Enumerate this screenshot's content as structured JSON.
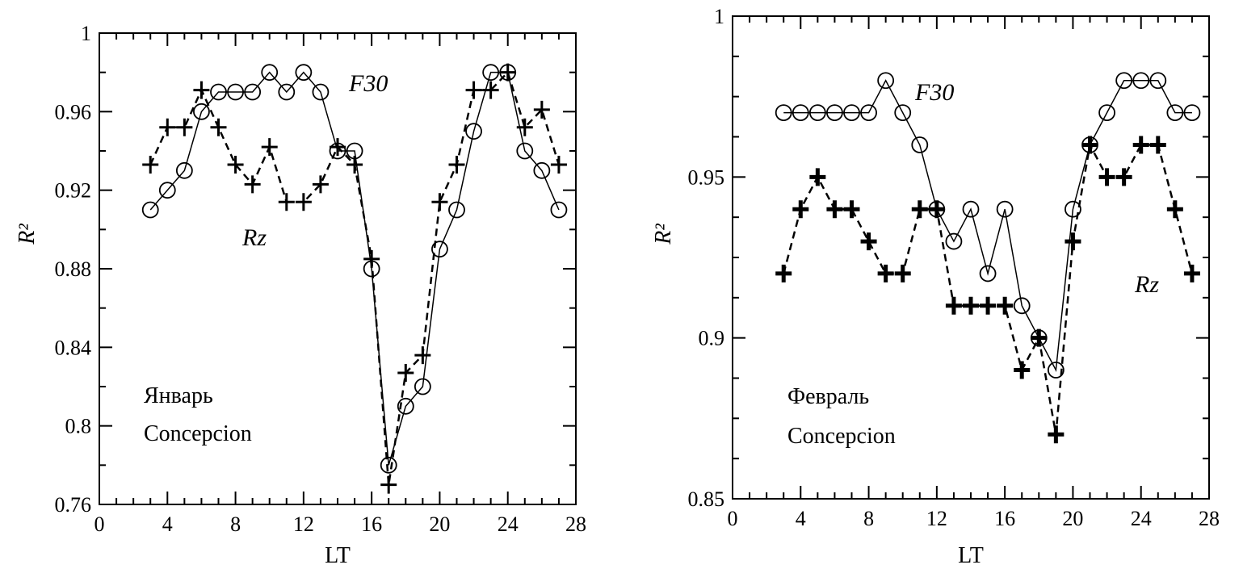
{
  "chart_data": [
    {
      "type": "line",
      "title": "",
      "xlabel": "LT",
      "ylabel": "R²",
      "xlim": [
        0,
        28
      ],
      "ylim": [
        0.76,
        1
      ],
      "xticks": [
        "0",
        "4",
        "8",
        "12",
        "16",
        "20",
        "24",
        "28"
      ],
      "yticks": [
        "0.76",
        "0.8",
        "0.84",
        "0.88",
        "0.92",
        "0.96",
        "1"
      ],
      "x": [
        3,
        4,
        5,
        6,
        7,
        8,
        9,
        10,
        11,
        12,
        13,
        14,
        15,
        16,
        17,
        18,
        19,
        20,
        21,
        22,
        23,
        24,
        25,
        26,
        27
      ],
      "series": [
        {
          "name": "F30",
          "marker": "circle",
          "line": "solid",
          "values": [
            0.91,
            0.92,
            0.93,
            0.96,
            0.97,
            0.97,
            0.97,
            0.98,
            0.97,
            0.98,
            0.97,
            0.94,
            0.94,
            0.88,
            0.78,
            0.81,
            0.82,
            0.89,
            0.91,
            0.95,
            0.98,
            0.98,
            0.94,
            0.93,
            0.91
          ]
        },
        {
          "name": "Rz",
          "marker": "plus",
          "line": "dashed",
          "values": [
            0.933,
            0.952,
            0.952,
            0.971,
            0.952,
            0.933,
            0.923,
            0.942,
            0.914,
            0.914,
            0.923,
            0.942,
            0.933,
            0.885,
            0.77,
            0.827,
            0.836,
            0.914,
            0.933,
            0.971,
            0.971,
            0.98,
            0.952,
            0.961,
            0.933
          ]
        }
      ],
      "annotations": {
        "f30": "F30",
        "rz": "Rz",
        "month": "Январь",
        "station": "Concepcion"
      }
    },
    {
      "type": "line",
      "title": "",
      "xlabel": "LT",
      "ylabel": "R²",
      "xlim": [
        0,
        28
      ],
      "ylim": [
        0.85,
        1
      ],
      "xticks": [
        "0",
        "4",
        "8",
        "12",
        "16",
        "20",
        "24",
        "28"
      ],
      "yticks": [
        "0.85",
        "0.9",
        "0.95",
        "1"
      ],
      "x": [
        3,
        4,
        5,
        6,
        7,
        8,
        9,
        10,
        11,
        12,
        13,
        14,
        15,
        16,
        17,
        18,
        19,
        20,
        21,
        22,
        23,
        24,
        25,
        26,
        27
      ],
      "series": [
        {
          "name": "F30",
          "marker": "circle",
          "line": "solid",
          "values": [
            0.97,
            0.97,
            0.97,
            0.97,
            0.97,
            0.97,
            0.98,
            0.97,
            0.96,
            0.94,
            0.93,
            0.94,
            0.92,
            0.94,
            0.91,
            0.9,
            0.89,
            0.94,
            0.96,
            0.97,
            0.98,
            0.98,
            0.98,
            0.97,
            0.97
          ]
        },
        {
          "name": "Rz",
          "marker": "plus",
          "line": "dashed",
          "values": [
            0.92,
            0.94,
            0.95,
            0.94,
            0.94,
            0.93,
            0.92,
            0.92,
            0.94,
            0.94,
            0.91,
            0.91,
            0.91,
            0.91,
            0.89,
            0.9,
            0.87,
            0.93,
            0.96,
            0.95,
            0.95,
            0.96,
            0.96,
            0.94,
            0.92
          ]
        }
      ],
      "annotations": {
        "f30": "F30",
        "rz": "Rz",
        "month": "Февраль",
        "station": "Concepcion"
      }
    }
  ]
}
